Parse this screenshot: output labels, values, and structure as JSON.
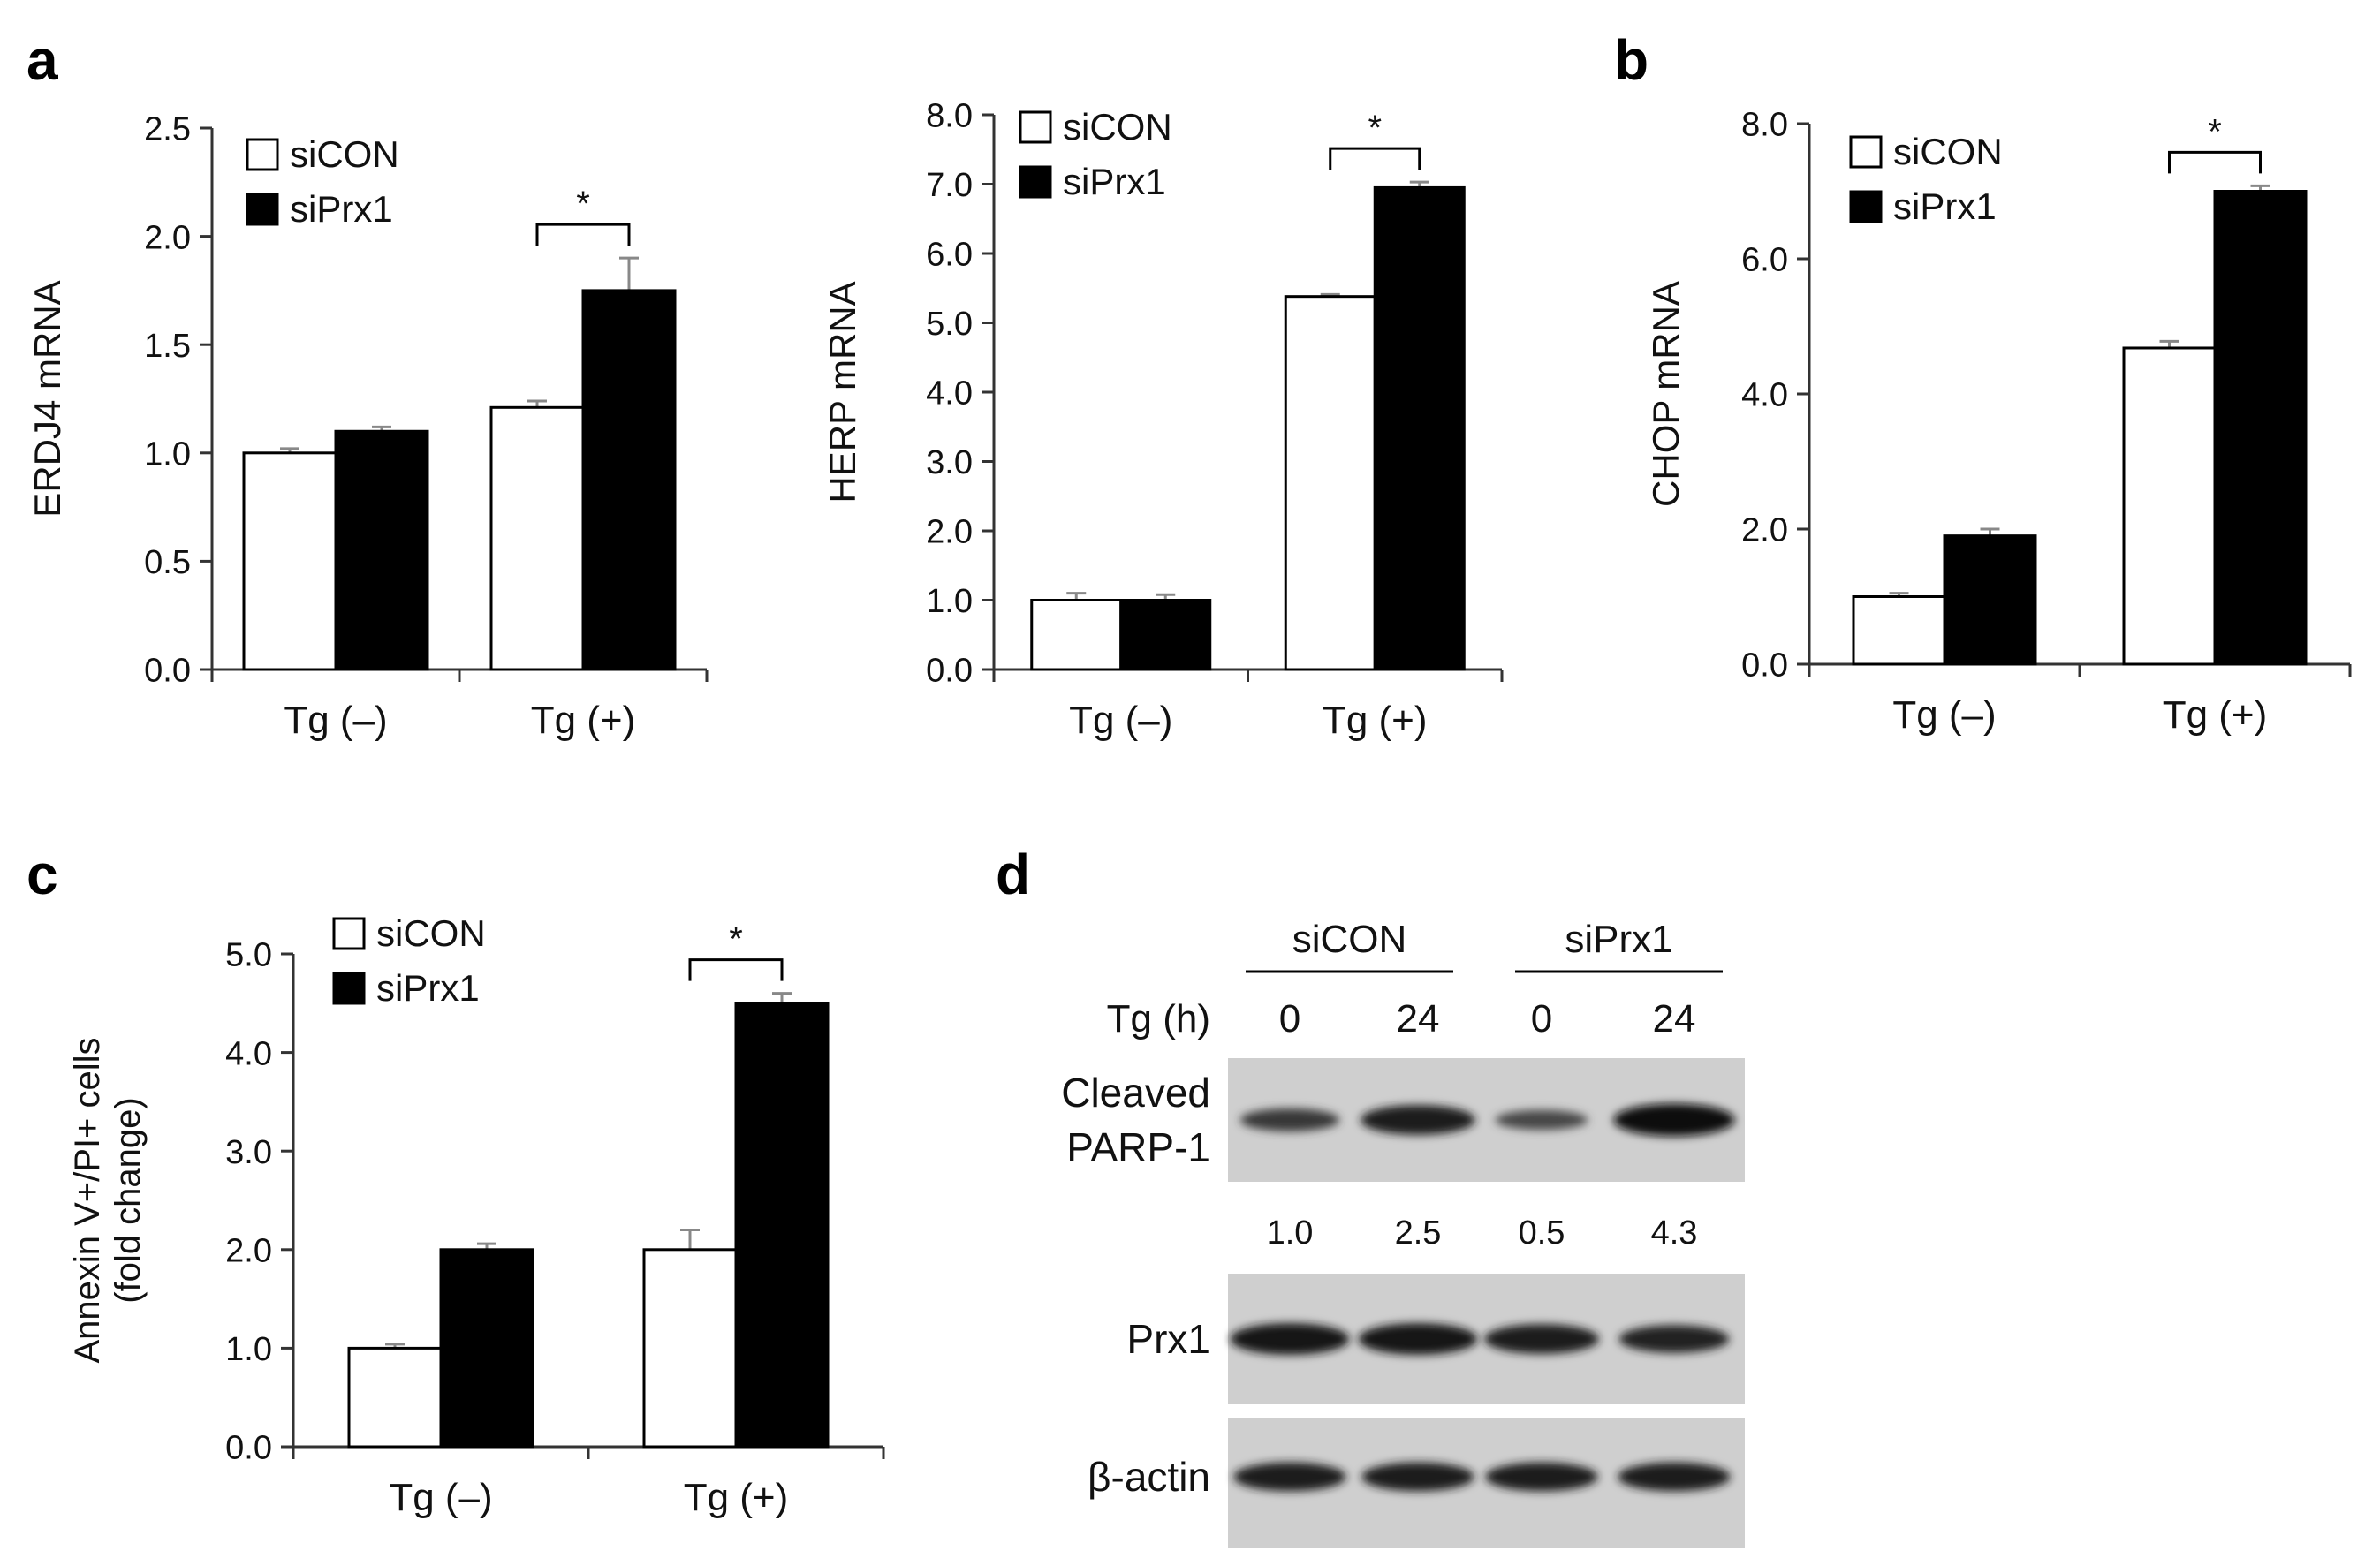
{
  "panel_labels": [
    "a",
    "b",
    "c",
    "d"
  ],
  "chart_data": [
    {
      "panel": "a",
      "type": "bar",
      "ylabel": "ERDJ4 mRNA",
      "categories": [
        "Tg (–)",
        "Tg (+)"
      ],
      "series": [
        {
          "name": "siCON",
          "values": [
            1.0,
            1.21
          ],
          "errors": [
            0.02,
            0.03
          ],
          "color": "#ffffff"
        },
        {
          "name": "siPrx1",
          "values": [
            1.1,
            1.75
          ],
          "errors": [
            0.02,
            0.15
          ],
          "color": "#000000"
        }
      ],
      "ylim": [
        0,
        2.5
      ],
      "yticks": [
        "0.0",
        "0.5",
        "1.0",
        "1.5",
        "2.0",
        "2.5"
      ],
      "legend": "top-left",
      "significance": {
        "category_index": 1,
        "mark": "*"
      }
    },
    {
      "panel": "a",
      "type": "bar",
      "ylabel": "HERP mRNA",
      "categories": [
        "Tg (–)",
        "Tg (+)"
      ],
      "series": [
        {
          "name": "siCON",
          "values": [
            1.0,
            5.38
          ],
          "errors": [
            0.1,
            0.03
          ],
          "color": "#ffffff"
        },
        {
          "name": "siPrx1",
          "values": [
            1.0,
            6.95
          ],
          "errors": [
            0.08,
            0.08
          ],
          "color": "#000000"
        }
      ],
      "ylim": [
        0,
        8
      ],
      "yticks": [
        "0.0",
        "1.0",
        "2.0",
        "3.0",
        "4.0",
        "5.0",
        "6.0",
        "7.0",
        "8.0"
      ],
      "legend": "top-left",
      "significance": {
        "category_index": 1,
        "mark": "*"
      }
    },
    {
      "panel": "b",
      "type": "bar",
      "ylabel": "CHOP mRNA",
      "categories": [
        "Tg (–)",
        "Tg (+)"
      ],
      "series": [
        {
          "name": "siCON",
          "values": [
            1.0,
            4.68
          ],
          "errors": [
            0.05,
            0.1
          ],
          "color": "#ffffff"
        },
        {
          "name": "siPrx1",
          "values": [
            1.9,
            7.0
          ],
          "errors": [
            0.1,
            0.08
          ],
          "color": "#000000"
        }
      ],
      "ylim": [
        0,
        8
      ],
      "yticks": [
        "0.0",
        "2.0",
        "4.0",
        "6.0",
        "8.0"
      ],
      "legend": "top-left",
      "significance": {
        "category_index": 1,
        "mark": "*"
      }
    },
    {
      "panel": "c",
      "type": "bar",
      "ylabel": [
        "Annexin V+/PI+ cells",
        "(fold change)"
      ],
      "categories": [
        "Tg (–)",
        "Tg (+)"
      ],
      "series": [
        {
          "name": "siCON",
          "values": [
            1.0,
            2.0
          ],
          "errors": [
            0.04,
            0.2
          ],
          "color": "#ffffff"
        },
        {
          "name": "siPrx1",
          "values": [
            2.0,
            4.5
          ],
          "errors": [
            0.06,
            0.1
          ],
          "color": "#000000"
        }
      ],
      "ylim": [
        0,
        5
      ],
      "yticks": [
        "0.0",
        "1.0",
        "2.0",
        "3.0",
        "4.0",
        "5.0"
      ],
      "legend": "top-left",
      "significance": {
        "category_index": 1,
        "mark": "*"
      }
    }
  ],
  "blot": {
    "groups": [
      "siCON",
      "siPrx1"
    ],
    "row_label": "Tg (h)",
    "lanes": [
      "0",
      "24",
      "0",
      "24"
    ],
    "rows": [
      {
        "label": [
          "Cleaved",
          "PARP-1"
        ],
        "intensity": [
          0.45,
          0.8,
          0.3,
          0.95
        ]
      },
      {
        "label": [
          "Prx1"
        ],
        "intensity": [
          0.9,
          0.9,
          0.8,
          0.7
        ]
      },
      {
        "label": [
          "β-actin"
        ],
        "intensity": [
          0.75,
          0.75,
          0.75,
          0.75
        ]
      }
    ],
    "quantification": [
      "1.0",
      "2.5",
      "0.5",
      "4.3"
    ]
  }
}
